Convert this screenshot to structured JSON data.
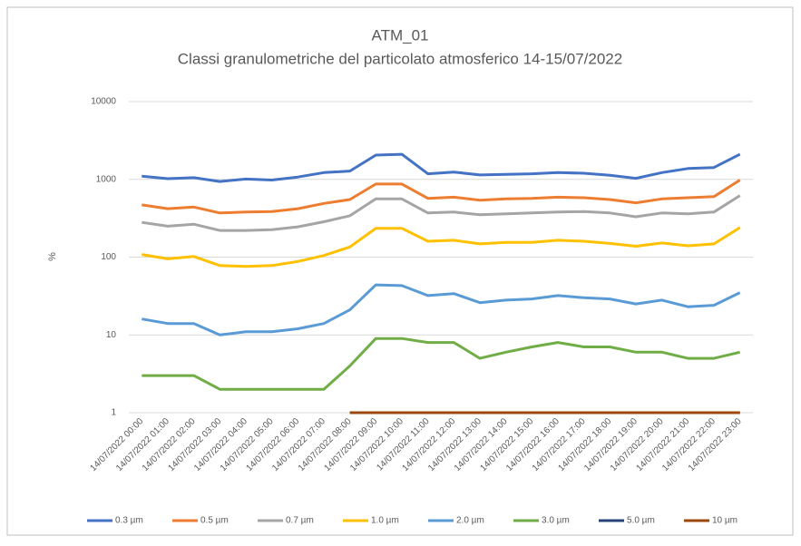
{
  "chart_data": {
    "type": "line",
    "title": "ATM_01",
    "subtitle": "Classi granulometriche del particolato atmosferico 14-15/07/2022",
    "y_label": "%",
    "log_scale": true,
    "grid": true,
    "legend": "bottom",
    "ylim": [
      1,
      10000
    ],
    "yticks": [
      1,
      10,
      100,
      1000,
      10000
    ],
    "categories": [
      "14/07/2022 00:00",
      "14/07/2022 01:00",
      "14/07/2022 02:00",
      "14/07/2022 03:00",
      "14/07/2022 04:00",
      "14/07/2022 05:00",
      "14/07/2022 06:00",
      "14/07/2022 07:00",
      "14/07/2022 08:00",
      "14/07/2022 09:00",
      "14/07/2022 10:00",
      "14/07/2022 11:00",
      "14/07/2022 12:00",
      "14/07/2022 13:00",
      "14/07/2022 14:00",
      "14/07/2022 15:00",
      "14/07/2022 16:00",
      "14/07/2022 17:00",
      "14/07/2022 18:00",
      "14/07/2022 19:00",
      "14/07/2022 20:00",
      "14/07/2022 21:00",
      "14/07/2022 22:00",
      "14/07/2022 23:00"
    ],
    "series": [
      {
        "name": "0.3 µm",
        "color": "#4472c4",
        "values": [
          1100,
          1020,
          1050,
          940,
          1010,
          980,
          1070,
          1220,
          1280,
          2050,
          2100,
          1180,
          1240,
          1140,
          1160,
          1180,
          1220,
          1200,
          1130,
          1030,
          1220,
          1380,
          1420,
          2100
        ]
      },
      {
        "name": "0.5 µm",
        "color": "#ed7d31",
        "values": [
          470,
          420,
          440,
          370,
          380,
          385,
          420,
          490,
          550,
          870,
          870,
          570,
          590,
          540,
          560,
          570,
          590,
          580,
          550,
          500,
          560,
          580,
          600,
          980
        ]
      },
      {
        "name": "0.7 µm",
        "color": "#a5a5a5",
        "values": [
          280,
          250,
          265,
          220,
          220,
          225,
          245,
          285,
          340,
          560,
          560,
          370,
          380,
          350,
          360,
          370,
          380,
          385,
          370,
          330,
          370,
          360,
          380,
          620
        ]
      },
      {
        "name": "1.0 µm",
        "color": "#ffc000",
        "values": [
          108,
          95,
          102,
          78,
          76,
          78,
          88,
          105,
          135,
          235,
          235,
          160,
          165,
          148,
          155,
          155,
          165,
          160,
          150,
          138,
          152,
          140,
          148,
          240
        ]
      },
      {
        "name": "2.0 µm",
        "color": "#5b9bd5",
        "values": [
          16,
          14,
          14,
          10,
          11,
          11,
          12,
          14,
          21,
          44,
          43,
          32,
          34,
          26,
          28,
          29,
          32,
          30,
          29,
          25,
          28,
          23,
          24,
          35
        ]
      },
      {
        "name": "3.0 µm",
        "color": "#70ad47",
        "values": [
          3,
          3,
          3,
          2,
          2,
          2,
          2,
          2,
          4,
          9,
          9,
          8,
          8,
          5,
          6,
          7,
          8,
          7,
          7,
          6,
          6,
          5,
          5,
          6
        ]
      },
      {
        "name": "5.0 µm",
        "color": "#264478",
        "values": [
          null,
          null,
          null,
          null,
          null,
          null,
          null,
          null,
          1,
          1,
          1,
          1,
          1,
          1,
          1,
          1,
          1,
          1,
          1,
          1,
          1,
          1,
          1,
          1
        ]
      },
      {
        "name": "10 µm",
        "color": "#9e480e",
        "values": [
          null,
          null,
          null,
          null,
          null,
          null,
          null,
          null,
          1,
          1,
          1,
          1,
          1,
          1,
          1,
          1,
          1,
          1,
          1,
          1,
          1,
          1,
          1,
          1
        ]
      }
    ]
  }
}
